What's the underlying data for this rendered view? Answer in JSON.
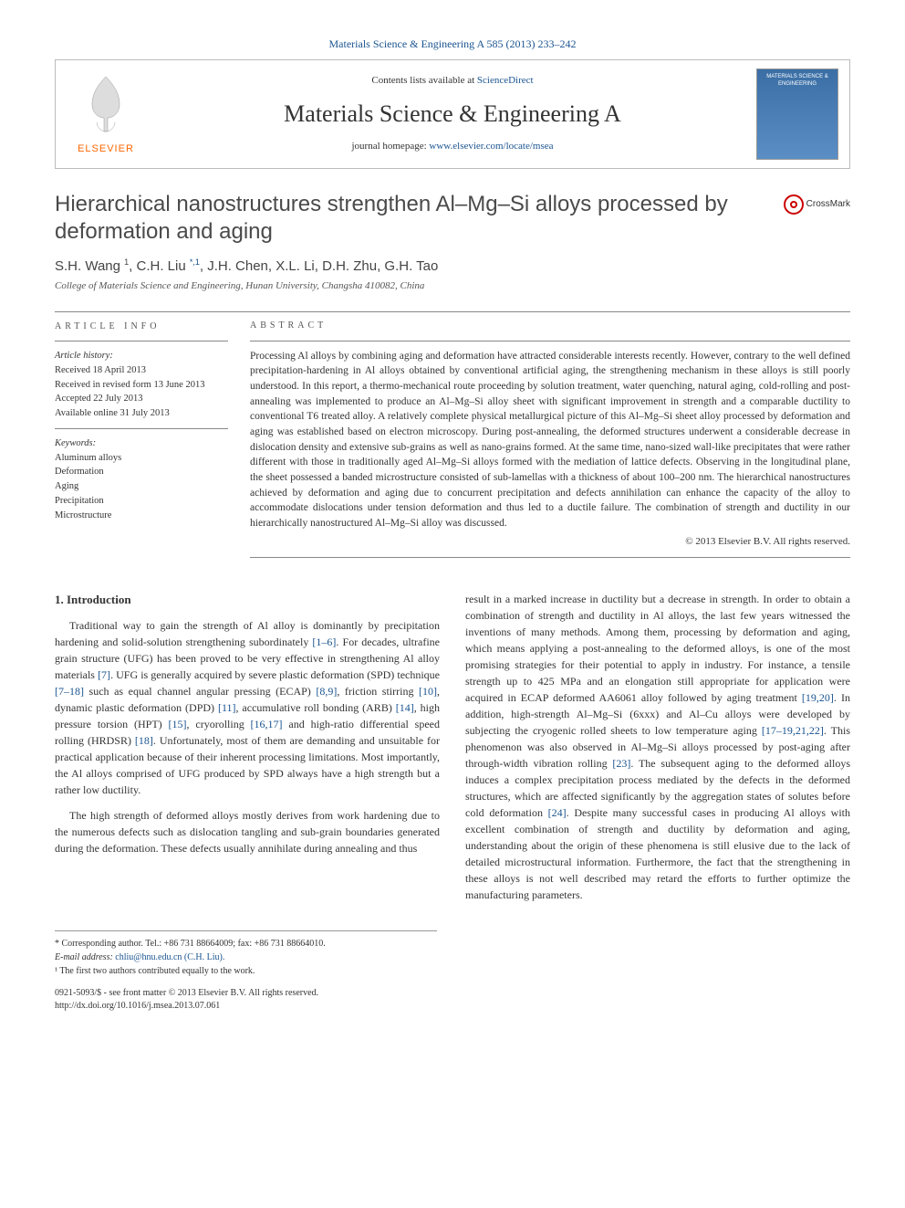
{
  "header": {
    "top_link_text": "Materials Science & Engineering A 585 (2013) 233–242",
    "contents_prefix": "Contents lists available at ",
    "contents_link": "ScienceDirect",
    "journal_name": "Materials Science & Engineering A",
    "homepage_prefix": "journal homepage: ",
    "homepage_link": "www.elsevier.com/locate/msea",
    "elsevier_label": "ELSEVIER",
    "cover_label": "MATERIALS SCIENCE & ENGINEERING"
  },
  "crossmark": {
    "label": "CrossMark"
  },
  "article": {
    "title": "Hierarchical nanostructures strengthen Al–Mg–Si alloys processed by deformation and aging",
    "authors_html": "S.H. Wang <sup>1</sup>, C.H. Liu <sup class=\"corr\">*,1</sup>, J.H. Chen, X.L. Li, D.H. Zhu, G.H. Tao",
    "affiliation": "College of Materials Science and Engineering, Hunan University, Changsha 410082, China"
  },
  "info": {
    "heading": "ARTICLE INFO",
    "history_label": "Article history:",
    "received": "Received 18 April 2013",
    "revised": "Received in revised form 13 June 2013",
    "accepted": "Accepted 22 July 2013",
    "online": "Available online 31 July 2013",
    "keywords_label": "Keywords:",
    "keywords": [
      "Aluminum alloys",
      "Deformation",
      "Aging",
      "Precipitation",
      "Microstructure"
    ]
  },
  "abstract": {
    "heading": "ABSTRACT",
    "text": "Processing Al alloys by combining aging and deformation have attracted considerable interests recently. However, contrary to the well defined precipitation-hardening in Al alloys obtained by conventional artificial aging, the strengthening mechanism in these alloys is still poorly understood. In this report, a thermo-mechanical route proceeding by solution treatment, water quenching, natural aging, cold-rolling and post-annealing was implemented to produce an Al–Mg–Si alloy sheet with significant improvement in strength and a comparable ductility to conventional T6 treated alloy. A relatively complete physical metallurgical picture of this Al–Mg–Si sheet alloy processed by deformation and aging was established based on electron microscopy. During post-annealing, the deformed structures underwent a considerable decrease in dislocation density and extensive sub-grains as well as nano-grains formed. At the same time, nano-sized wall-like precipitates that were rather different with those in traditionally aged Al–Mg–Si alloys formed with the mediation of lattice defects. Observing in the longitudinal plane, the sheet possessed a banded microstructure consisted of sub-lamellas with a thickness of about 100–200 nm. The hierarchical nanostructures achieved by deformation and aging due to concurrent precipitation and defects annihilation can enhance the capacity of the alloy to accommodate dislocations under tension deformation and thus led to a ductile failure. The combination of strength and ductility in our hierarchically nanostructured Al–Mg–Si alloy was discussed.",
    "copyright": "© 2013 Elsevier B.V. All rights reserved."
  },
  "body": {
    "section_title": "1.  Introduction",
    "col1_p1": "Traditional way to gain the strength of Al alloy is dominantly by precipitation hardening and solid-solution strengthening subordinately [1–6]. For decades, ultrafine grain structure (UFG) has been proved to be very effective in strengthening Al alloy materials [7]. UFG is generally acquired by severe plastic deformation (SPD) technique [7–18] such as equal channel angular pressing (ECAP) [8,9], friction stirring [10], dynamic plastic deformation (DPD) [11], accumulative roll bonding (ARB) [14], high pressure torsion (HPT) [15], cryorolling [16,17] and high-ratio differential speed rolling (HRDSR) [18]. Unfortunately, most of them are demanding and unsuitable for practical application because of their inherent processing limitations. Most importantly, the Al alloys comprised of UFG produced by SPD always have a high strength but a rather low ductility.",
    "col1_p2": "The high strength of deformed alloys mostly derives from work hardening due to the numerous defects such as dislocation tangling and sub-grain boundaries generated during the deformation. These defects usually annihilate during annealing and thus",
    "col2_p1": "result in a marked increase in ductility but a decrease in strength. In order to obtain a combination of strength and ductility in Al alloys, the last few years witnessed the inventions of many methods. Among them, processing by deformation and aging, which means applying a post-annealing to the deformed alloys, is one of the most promising strategies for their potential to apply in industry. For instance, a tensile strength up to 425 MPa and an elongation still appropriate for application were acquired in ECAP deformed AA6061 alloy followed by aging treatment [19,20]. In addition, high-strength Al–Mg–Si (6xxx) and Al–Cu alloys were developed by subjecting the cryogenic rolled sheets to low temperature aging [17–19,21,22]. This phenomenon was also observed in Al–Mg–Si alloys processed by post-aging after through-width vibration rolling [23]. The subsequent aging to the deformed alloys induces a complex precipitation process mediated by the defects in the deformed structures, which are affected significantly by the aggregation states of solutes before cold deformation [24]. Despite many successful cases in producing Al alloys with excellent combination of strength and ductility by deformation and aging, understanding about the origin of these phenomena is still elusive due to the lack of detailed microstructural information. Furthermore, the fact that the strengthening in these alloys is not well described may retard the efforts to further optimize the manufacturing parameters."
  },
  "footnotes": {
    "corr": "* Corresponding author. Tel.: +86 731 88664009; fax: +86 731 88664010.",
    "email_label": "E-mail address: ",
    "email": "chliu@hnu.edu.cn (C.H. Liu).",
    "note1": "¹ The first two authors contributed equally to the work."
  },
  "bottom": {
    "issn": "0921-5093/$ - see front matter © 2013 Elsevier B.V. All rights reserved.",
    "doi": "http://dx.doi.org/10.1016/j.msea.2013.07.061"
  },
  "colors": {
    "link": "#1a5490",
    "elsevier_orange": "#ff6600",
    "text": "#333333",
    "rule": "#888888"
  }
}
